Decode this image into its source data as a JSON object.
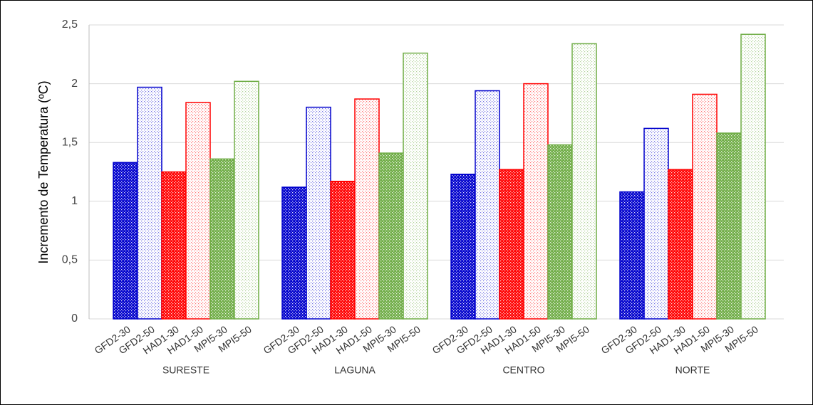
{
  "chart_data": {
    "type": "bar",
    "y_label": "Incremento de Temperatura (ºC)",
    "categories": [
      "SURESTE",
      "LAGUNA",
      "CENTRO",
      "NORTE"
    ],
    "series": [
      {
        "name": "GFD2-30",
        "color": "#0000cc",
        "pattern": "crosshatch",
        "values": [
          1.33,
          1.12,
          1.23,
          1.08
        ]
      },
      {
        "name": "GFD2-50",
        "color": "#0000cc",
        "pattern": "dots",
        "values": [
          1.97,
          1.8,
          1.94,
          1.62
        ]
      },
      {
        "name": "HAD1-30",
        "color": "#ff0000",
        "pattern": "crosshatch",
        "values": [
          1.25,
          1.17,
          1.27,
          1.27
        ]
      },
      {
        "name": "HAD1-50",
        "color": "#ff0000",
        "pattern": "dots",
        "values": [
          1.84,
          1.87,
          2.0,
          1.91
        ]
      },
      {
        "name": "MPI5-30",
        "color": "#70ad47",
        "pattern": "crosshatch",
        "values": [
          1.36,
          1.41,
          1.48,
          1.58
        ]
      },
      {
        "name": "MPI5-50",
        "color": "#70ad47",
        "pattern": "dots",
        "values": [
          2.02,
          2.26,
          2.34,
          2.42
        ]
      }
    ],
    "ylim": [
      0,
      2.5
    ],
    "yticks": [
      0,
      {
        "value": 0.5,
        "label": "0,5"
      },
      1,
      {
        "value": 1.5,
        "label": "1,5"
      },
      2,
      {
        "value": 2.5,
        "label": "2,5"
      }
    ],
    "grid": true
  }
}
